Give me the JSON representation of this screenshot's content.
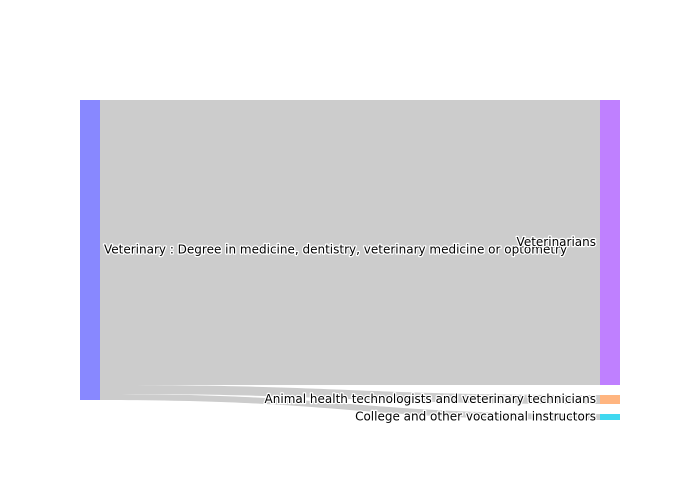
{
  "chart_data": {
    "type": "sankey",
    "nodes": [
      {
        "id": "src",
        "label": "Veterinary : Degree in medicine, dentistry, veterinary medicine or optometry",
        "color": "#8888ff",
        "side": "left"
      },
      {
        "id": "vet",
        "label": "Veterinarians",
        "color": "#bf80ff",
        "side": "right"
      },
      {
        "id": "tech",
        "label": "Animal health technologists and veterinary technicians",
        "color": "#ffb580",
        "side": "right"
      },
      {
        "id": "instr",
        "label": "College and other vocational instructors",
        "color": "#40d8f0",
        "side": "right"
      }
    ],
    "links": [
      {
        "source": "src",
        "target": "vet",
        "value": 95
      },
      {
        "source": "src",
        "target": "tech",
        "value": 3
      },
      {
        "source": "src",
        "target": "instr",
        "value": 2
      }
    ],
    "link_color": "#cccccc"
  }
}
